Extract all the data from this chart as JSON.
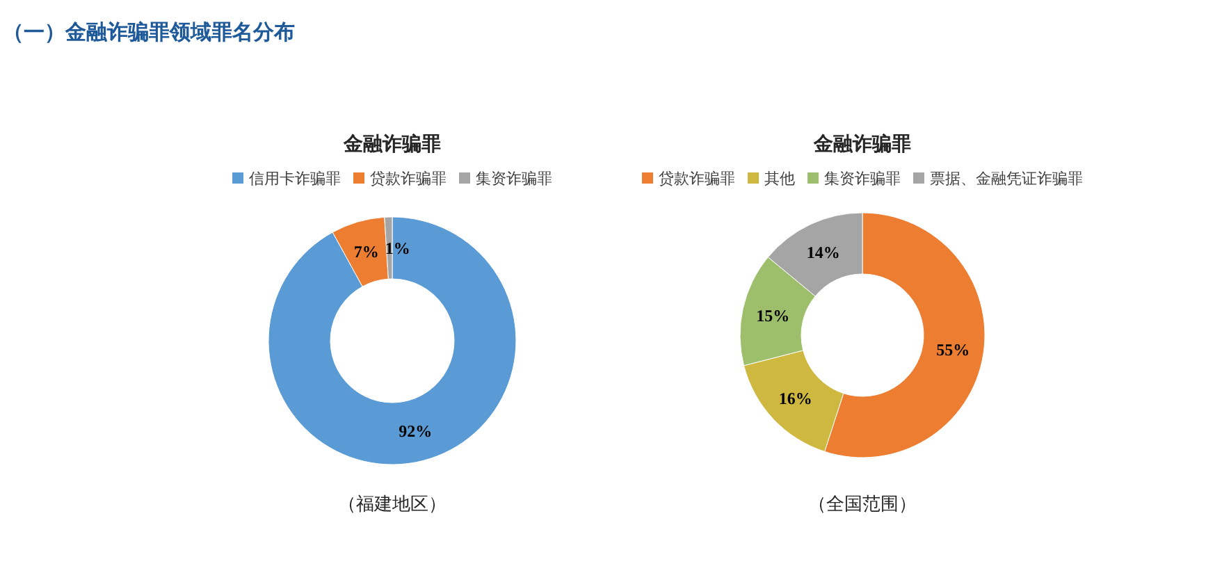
{
  "chart_data": [
    {
      "type": "donut",
      "title": "金融诈骗罪",
      "categories": [
        "信用卡诈骗罪",
        "贷款诈骗罪",
        "集资诈骗罪"
      ],
      "values": [
        92,
        7,
        1
      ],
      "colors": [
        "#5b9bd5",
        "#ed7d31",
        "#a5a5a5"
      ],
      "value_labels": [
        "92%",
        "7%",
        "1%"
      ],
      "legend": "top",
      "annotations": [
        "（一）金融诈骗罪领域罪名分布",
        "（福建地区）"
      ]
    },
    {
      "type": "donut",
      "title": "金融诈骗罪",
      "categories": [
        "贷款诈骗罪",
        "其他",
        "集资诈骗罪",
        "票据、金融凭证诈骗罪"
      ],
      "values": [
        55,
        16,
        15,
        14
      ],
      "colors": [
        "#ed7d31",
        "#cfb83f",
        "#9dbf6b",
        "#a5a5a5"
      ],
      "value_labels": [
        "55%",
        "16%",
        "15%",
        "14%"
      ],
      "legend": "top",
      "annotations": [
        "（全国范围）"
      ]
    }
  ]
}
